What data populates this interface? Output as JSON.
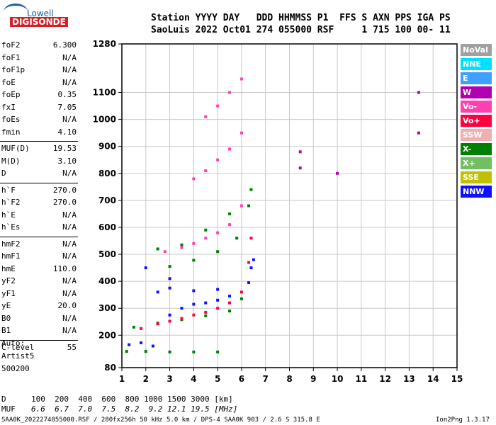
{
  "logo": {
    "top": "Lowell",
    "bottom": "DIGISONDE"
  },
  "header": {
    "line1": "Station YYYY DAY   DDD HHMMSS P1  FFS S AXN PPS IGA PS",
    "line2": "SaoLuis 2022 Oct01 274 055000 RSF     1 715 100 00- 11"
  },
  "params": [
    [
      {
        "name": "foF2",
        "value": "6.300"
      },
      {
        "name": "foF1",
        "value": "N/A"
      },
      {
        "name": "foF1p",
        "value": "N/A"
      },
      {
        "name": "foE",
        "value": "N/A"
      },
      {
        "name": "foEp",
        "value": "0.35"
      },
      {
        "name": "fxI",
        "value": "7.05"
      },
      {
        "name": "foEs",
        "value": "N/A"
      },
      {
        "name": "fmin",
        "value": "4.10"
      }
    ],
    [
      {
        "name": "MUF(D)",
        "value": "19.53"
      },
      {
        "name": "M(D)",
        "value": "3.10"
      },
      {
        "name": "D",
        "value": "N/A"
      }
    ],
    [
      {
        "name": "h`F",
        "value": "270.0"
      },
      {
        "name": "h`F2",
        "value": "270.0"
      },
      {
        "name": "h`E",
        "value": "N/A"
      },
      {
        "name": "h`Es",
        "value": "N/A"
      }
    ],
    [
      {
        "name": "hmF2",
        "value": "N/A"
      },
      {
        "name": "hmF1",
        "value": "N/A"
      },
      {
        "name": "hmE",
        "value": "110.0"
      },
      {
        "name": "yF2",
        "value": "N/A"
      },
      {
        "name": "yF1",
        "value": "N/A"
      },
      {
        "name": "yE",
        "value": "20.0"
      },
      {
        "name": "B0",
        "value": "N/A"
      },
      {
        "name": "B1",
        "value": "N/A"
      }
    ],
    [
      {
        "name": "C-level",
        "value": "55"
      }
    ]
  ],
  "autoscaler": {
    "line1": "Auto:",
    "line2": "Artist5",
    "line3": "500200"
  },
  "legend": [
    {
      "label": "NoVal",
      "color": "#a0a0a0"
    },
    {
      "label": "NNE",
      "color": "#00e0ff"
    },
    {
      "label": "E",
      "color": "#40a0ff"
    },
    {
      "label": "W",
      "color": "#b000b0"
    },
    {
      "label": "Vo-",
      "color": "#ff40b0"
    },
    {
      "label": "Vo+",
      "color": "#ff0040"
    },
    {
      "label": "SSW",
      "color": "#f0b0b0"
    },
    {
      "label": "X-",
      "color": "#008000"
    },
    {
      "label": "X+",
      "color": "#70c060"
    },
    {
      "label": "SSE",
      "color": "#c0c000"
    },
    {
      "label": "NNW",
      "color": "#1010ff"
    }
  ],
  "muf_table": {
    "d_label": "D",
    "d_values": "100  200  400  600  800 1000 1500 3000 [km]",
    "muf_label": "MUF",
    "muf_values": "6.6  6.7  7.0  7.5  8.2  9.2 12.1 19.5 [MHz]"
  },
  "footer": {
    "left": "SAA0K_2022274055000.RSF / 280fx256h 50 kHz 5.0 km / DPS-4 SAA0K 903 / 2.6 S 315.8 E",
    "right": "Ion2Png 1.3.17"
  },
  "chart_data": {
    "type": "scatter",
    "title": "",
    "xlabel": "",
    "ylabel": "",
    "xlim": [
      1,
      15
    ],
    "ylim": [
      80,
      1280
    ],
    "x_ticks": [
      "1",
      "2",
      "3",
      "4",
      "5",
      "6",
      "7",
      "8",
      "9",
      "10",
      "11",
      "12",
      "13",
      "14",
      "15"
    ],
    "y_ticks": [
      "80",
      "200",
      "300",
      "400",
      "500",
      "600",
      "700",
      "800",
      "900",
      "1000",
      "1100",
      "1280"
    ],
    "y_tick_values": [
      80,
      200,
      300,
      400,
      500,
      600,
      700,
      800,
      900,
      1000,
      1100,
      1280
    ],
    "series": [
      {
        "name": "X-",
        "color": "#008000",
        "values": [
          [
            1.2,
            140
          ],
          [
            2,
            140
          ],
          [
            3,
            138
          ],
          [
            4,
            138
          ],
          [
            5,
            138
          ],
          [
            1.5,
            230
          ],
          [
            2.5,
            245
          ],
          [
            3.5,
            258
          ],
          [
            4.5,
            272
          ],
          [
            5.5,
            290
          ],
          [
            6,
            335
          ],
          [
            3,
            455
          ],
          [
            4,
            478
          ],
          [
            5,
            510
          ],
          [
            5.8,
            560
          ],
          [
            6.3,
            680
          ],
          [
            6.4,
            740
          ],
          [
            4.5,
            590
          ],
          [
            5.5,
            650
          ],
          [
            3.5,
            535
          ],
          [
            2.5,
            520
          ]
        ]
      },
      {
        "name": "NNW",
        "color": "#1010ff",
        "values": [
          [
            1.3,
            165
          ],
          [
            1.8,
            172
          ],
          [
            2.3,
            160
          ],
          [
            3,
            275
          ],
          [
            3.5,
            300
          ],
          [
            4,
            315
          ],
          [
            4.5,
            320
          ],
          [
            5,
            330
          ],
          [
            5.5,
            345
          ],
          [
            6.3,
            395
          ],
          [
            6.5,
            480
          ],
          [
            2.5,
            360
          ],
          [
            3,
            375
          ],
          [
            4,
            365
          ],
          [
            5,
            370
          ],
          [
            2,
            450
          ],
          [
            3,
            410
          ],
          [
            6.4,
            450
          ]
        ]
      },
      {
        "name": "Vo+",
        "color": "#ff0040",
        "values": [
          [
            1.8,
            225
          ],
          [
            2.5,
            242
          ],
          [
            3,
            252
          ],
          [
            3.5,
            262
          ],
          [
            4,
            275
          ],
          [
            4.5,
            285
          ],
          [
            5,
            300
          ],
          [
            5.5,
            320
          ],
          [
            6,
            360
          ],
          [
            6.3,
            470
          ],
          [
            6.4,
            560
          ]
        ]
      },
      {
        "name": "Vo-",
        "color": "#ff40b0",
        "values": [
          [
            2.8,
            510
          ],
          [
            3.5,
            525
          ],
          [
            4,
            540
          ],
          [
            4.5,
            560
          ],
          [
            5,
            580
          ],
          [
            5.5,
            610
          ],
          [
            6,
            680
          ],
          [
            4,
            780
          ],
          [
            4.5,
            810
          ],
          [
            5,
            850
          ],
          [
            5.5,
            890
          ],
          [
            6,
            950
          ],
          [
            4.5,
            1010
          ],
          [
            5,
            1050
          ],
          [
            5.5,
            1100
          ],
          [
            6,
            1150
          ]
        ]
      },
      {
        "name": "W",
        "color": "#b000b0",
        "values": [
          [
            8.45,
            880
          ],
          [
            8.45,
            820
          ],
          [
            10,
            800
          ],
          [
            13.4,
            1100
          ],
          [
            13.4,
            950
          ]
        ]
      }
    ]
  }
}
